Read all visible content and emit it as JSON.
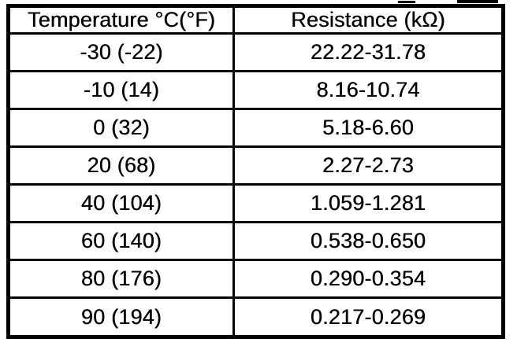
{
  "table": {
    "columns": [
      {
        "label": "Temperature °C(°F)"
      },
      {
        "label": "Resistance (kΩ)"
      }
    ],
    "rows": [
      [
        "-30 (-22)",
        "22.22-31.78"
      ],
      [
        "-10 (14)",
        "8.16-10.74"
      ],
      [
        "0 (32)",
        "5.18-6.60"
      ],
      [
        "20 (68)",
        "2.27-2.73"
      ],
      [
        "40 (104)",
        "1.059-1.281"
      ],
      [
        "60 (140)",
        "0.538-0.650"
      ],
      [
        "80 (176)",
        "0.290-0.354"
      ],
      [
        "90 (194)",
        "0.217-0.269"
      ]
    ]
  },
  "chart_data": {
    "type": "table",
    "title": "",
    "columns": [
      "Temperature °C(°F)",
      "Resistance (kΩ)"
    ],
    "rows": [
      [
        "-30 (-22)",
        "22.22-31.78"
      ],
      [
        "-10 (14)",
        "8.16-10.74"
      ],
      [
        "0 (32)",
        "5.18-6.60"
      ],
      [
        "20 (68)",
        "2.27-2.73"
      ],
      [
        "40 (104)",
        "1.059-1.281"
      ],
      [
        "60 (140)",
        "0.538-0.650"
      ],
      [
        "80 (176)",
        "0.290-0.354"
      ],
      [
        "90 (194)",
        "0.217-0.269"
      ]
    ]
  },
  "colors": {
    "border": "#000000",
    "background": "#ffffff",
    "text": "#000000"
  }
}
